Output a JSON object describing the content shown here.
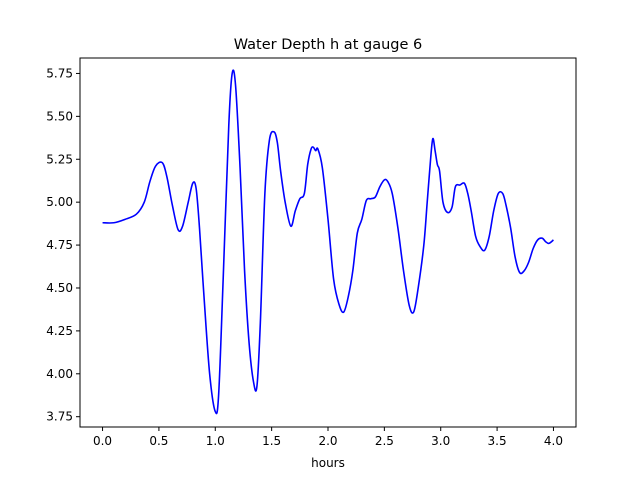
{
  "chart_data": {
    "type": "line",
    "title": "Water Depth h at gauge 6",
    "xlabel": "hours",
    "ylabel": "",
    "xlim": [
      -0.2,
      4.2
    ],
    "ylim": [
      3.69,
      5.84
    ],
    "xticks": [
      0.0,
      0.5,
      1.0,
      1.5,
      2.0,
      2.5,
      3.0,
      3.5,
      4.0
    ],
    "xtick_labels": [
      "0.0",
      "0.5",
      "1.0",
      "1.5",
      "2.0",
      "2.5",
      "3.0",
      "3.5",
      "4.0"
    ],
    "yticks": [
      3.75,
      4.0,
      4.25,
      4.5,
      4.75,
      5.0,
      5.25,
      5.5,
      5.75
    ],
    "ytick_labels": [
      "3.75",
      "4.00",
      "4.25",
      "4.50",
      "4.75",
      "5.00",
      "5.25",
      "5.50",
      "5.75"
    ],
    "grid": false,
    "series": [
      {
        "color": "#0000ff",
        "x": [
          0.0,
          0.1,
          0.2,
          0.3,
          0.37,
          0.42,
          0.47,
          0.53,
          0.57,
          0.62,
          0.67,
          0.71,
          0.76,
          0.8,
          0.83,
          0.86,
          0.9,
          0.95,
          1.0,
          1.03,
          1.07,
          1.12,
          1.15,
          1.18,
          1.22,
          1.26,
          1.3,
          1.34,
          1.37,
          1.4,
          1.44,
          1.48,
          1.52,
          1.55,
          1.58,
          1.62,
          1.67,
          1.71,
          1.75,
          1.79,
          1.82,
          1.85,
          1.87,
          1.89,
          1.91,
          1.95,
          2.0,
          2.05,
          2.1,
          2.14,
          2.18,
          2.22,
          2.26,
          2.3,
          2.34,
          2.38,
          2.42,
          2.46,
          2.5,
          2.53,
          2.57,
          2.62,
          2.67,
          2.72,
          2.76,
          2.8,
          2.85,
          2.88,
          2.91,
          2.93,
          2.95,
          2.97,
          2.99,
          3.02,
          3.06,
          3.1,
          3.13,
          3.17,
          3.21,
          3.24,
          3.27,
          3.31,
          3.35,
          3.39,
          3.43,
          3.47,
          3.51,
          3.55,
          3.58,
          3.62,
          3.66,
          3.7,
          3.74,
          3.78,
          3.82,
          3.86,
          3.9,
          3.93,
          3.96,
          4.0
        ],
        "y": [
          4.88,
          4.88,
          4.9,
          4.93,
          5.0,
          5.12,
          5.21,
          5.23,
          5.15,
          4.98,
          4.84,
          4.86,
          5.0,
          5.11,
          5.08,
          4.85,
          4.45,
          4.0,
          3.78,
          3.88,
          4.55,
          5.45,
          5.75,
          5.68,
          5.2,
          4.6,
          4.18,
          3.95,
          3.93,
          4.3,
          5.05,
          5.36,
          5.41,
          5.35,
          5.18,
          5.0,
          4.86,
          4.95,
          5.02,
          5.05,
          5.22,
          5.31,
          5.32,
          5.3,
          5.31,
          5.2,
          4.9,
          4.55,
          4.4,
          4.36,
          4.45,
          4.6,
          4.82,
          4.9,
          5.01,
          5.02,
          5.03,
          5.09,
          5.13,
          5.12,
          5.05,
          4.85,
          4.6,
          4.4,
          4.36,
          4.5,
          4.75,
          5.0,
          5.25,
          5.37,
          5.3,
          5.22,
          5.18,
          5.0,
          4.94,
          4.97,
          5.09,
          5.1,
          5.11,
          5.05,
          4.95,
          4.8,
          4.74,
          4.72,
          4.8,
          4.95,
          5.05,
          5.05,
          4.98,
          4.85,
          4.68,
          4.59,
          4.6,
          4.65,
          4.73,
          4.78,
          4.79,
          4.77,
          4.76,
          4.78
        ]
      }
    ]
  }
}
